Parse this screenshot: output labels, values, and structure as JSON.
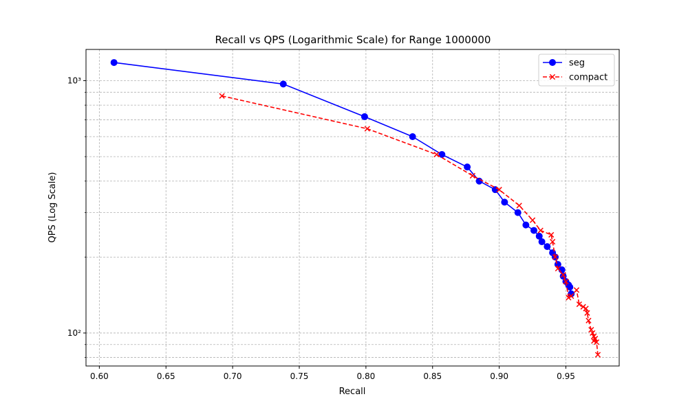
{
  "chart_data": {
    "type": "line",
    "title": "Recall vs QPS (Logarithmic Scale) for Range 1000000",
    "xlabel": "Recall",
    "ylabel": "QPS (Log Scale)",
    "xlim": [
      0.59,
      0.99
    ],
    "ylim": [
      74,
      1330
    ],
    "y_scale": "log",
    "grid": true,
    "legend_position": "top-right",
    "x_ticks": [
      0.6,
      0.65,
      0.7,
      0.75,
      0.8,
      0.85,
      0.9,
      0.95
    ],
    "x_tick_labels": [
      "0.60",
      "0.65",
      "0.70",
      "0.75",
      "0.80",
      "0.85",
      "0.90",
      "0.95"
    ],
    "y_major_ticks": [
      100,
      1000
    ],
    "y_tick_labels": [
      "10²",
      "10³"
    ],
    "y_minor_ticks": [
      80,
      90,
      200,
      300,
      400,
      500,
      600,
      700,
      800,
      900
    ],
    "series": [
      {
        "name": "seg",
        "color": "#0000ff",
        "line_style": "solid",
        "marker": "circle",
        "x": [
          0.611,
          0.738,
          0.799,
          0.835,
          0.857,
          0.876,
          0.885,
          0.897,
          0.904,
          0.914,
          0.92,
          0.926,
          0.93,
          0.932,
          0.936,
          0.94,
          0.942,
          0.944,
          0.947,
          0.948,
          0.95,
          0.952,
          0.953,
          0.954
        ],
        "y": [
          1180,
          970,
          720,
          600,
          510,
          455,
          400,
          370,
          330,
          300,
          268,
          255,
          242,
          230,
          220,
          208,
          200,
          187,
          178,
          168,
          160,
          155,
          152,
          143
        ]
      },
      {
        "name": "compact",
        "color": "#ff0000",
        "line_style": "dashed",
        "marker": "x",
        "x": [
          0.692,
          0.801,
          0.853,
          0.88,
          0.9,
          0.915,
          0.925,
          0.931,
          0.939,
          0.94,
          0.942,
          0.944,
          0.948,
          0.95,
          0.952,
          0.954,
          0.958,
          0.96,
          0.963,
          0.965,
          0.966,
          0.967,
          0.969,
          0.97,
          0.971,
          0.971,
          0.972,
          0.973,
          0.974
        ],
        "y": [
          870,
          645,
          510,
          420,
          370,
          320,
          280,
          255,
          245,
          230,
          200,
          180,
          170,
          160,
          138,
          140,
          148,
          130,
          127,
          125,
          120,
          112,
          103,
          100,
          97,
          93,
          95,
          92,
          82
        ]
      }
    ]
  }
}
